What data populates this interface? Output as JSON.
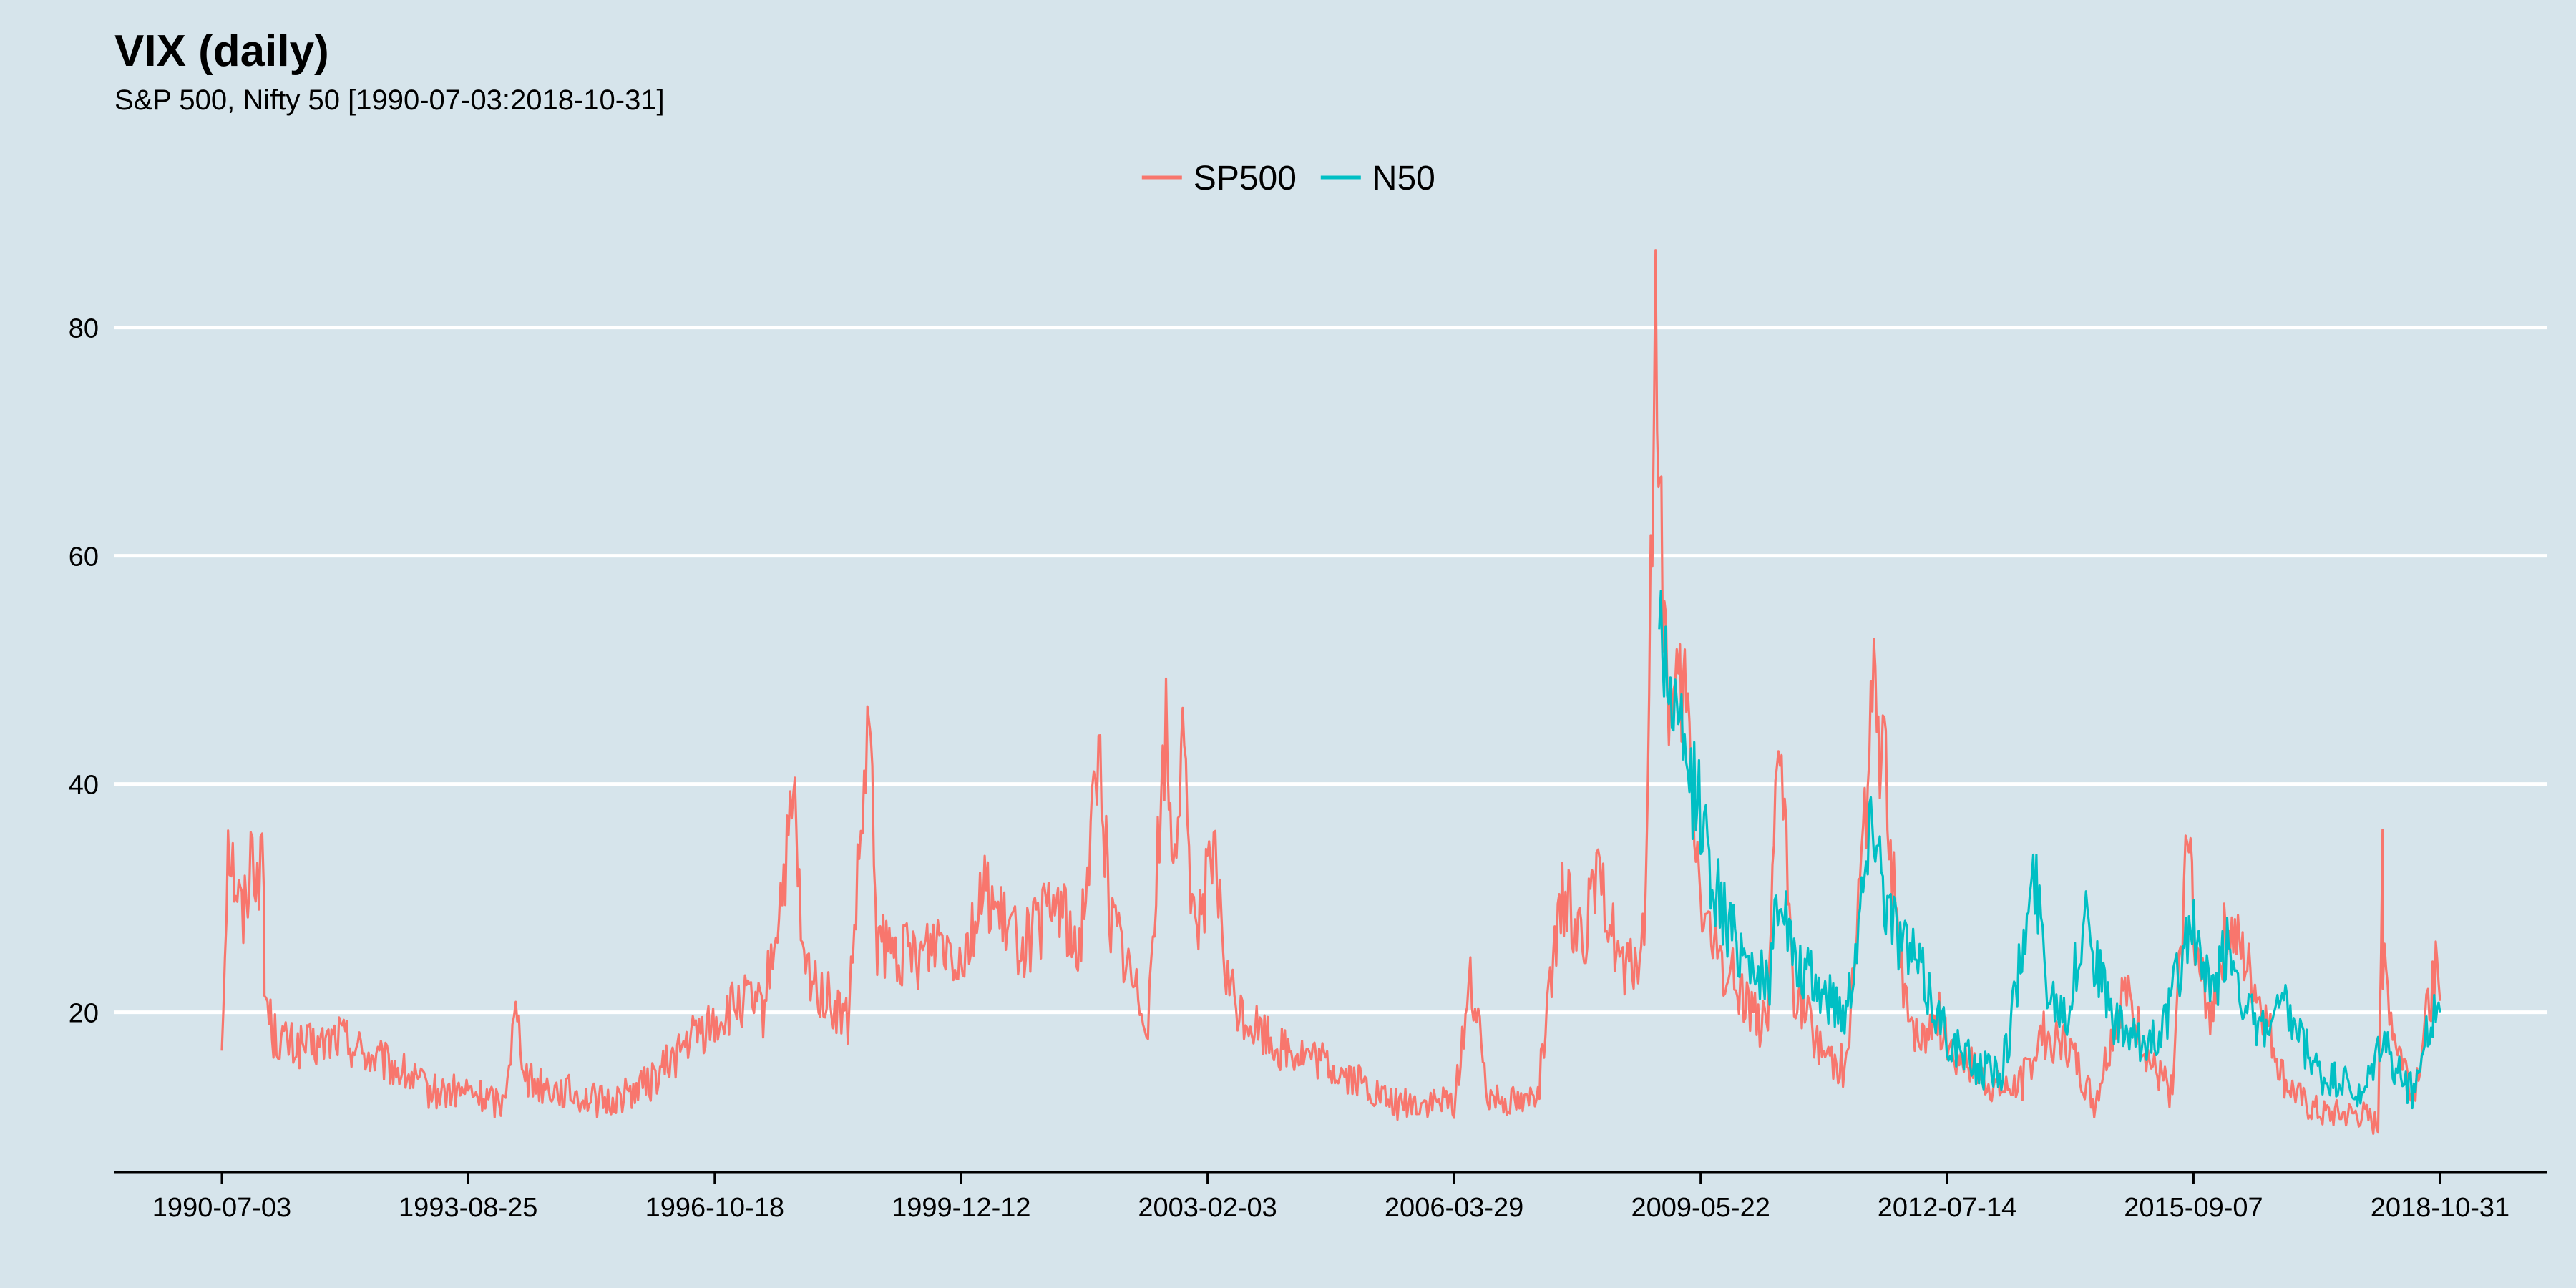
{
  "chart_data": {
    "type": "line",
    "title": "VIX (daily)",
    "subtitle": "S&P 500, Nifty 50 [1990-07-03:2018-10-31]",
    "xlabel": "",
    "ylabel": "",
    "ylim": [
      6,
      88
    ],
    "yticks": [
      20,
      40,
      60,
      80
    ],
    "xticks": [
      "1990-07-03",
      "1993-08-25",
      "1996-10-18",
      "1999-12-12",
      "2003-02-03",
      "2006-03-29",
      "2009-05-22",
      "2012-07-14",
      "2015-09-07",
      "2018-10-31"
    ],
    "grid": "horizontal",
    "legend_position": "top",
    "colors": {
      "SP500": "#f8766d",
      "N50": "#00bfc4",
      "background": "#d6e4eb",
      "grid": "#ffffff"
    },
    "series": [
      {
        "name": "SP500",
        "x": [
          "1990-07-03",
          "1990-08-01",
          "1990-08-23",
          "1990-09-20",
          "1990-10-11",
          "1990-11-15",
          "1991-01-15",
          "1991-01-18",
          "1991-03-01",
          "1991-06-01",
          "1991-10-01",
          "1992-01-01",
          "1992-06-01",
          "1992-10-01",
          "1993-03-01",
          "1993-08-25",
          "1994-02-01",
          "1994-04-04",
          "1994-06-01",
          "1994-12-01",
          "1995-06-01",
          "1996-01-01",
          "1996-07-15",
          "1996-10-18",
          "1997-03-01",
          "1997-06-01",
          "1997-10-27",
          "1997-12-01",
          "1998-04-01",
          "1998-07-01",
          "1998-10-08",
          "1998-11-15",
          "1999-02-01",
          "1999-06-01",
          "1999-09-01",
          "1999-12-12",
          "2000-04-14",
          "2000-06-01",
          "2000-10-01",
          "2001-01-01",
          "2001-03-22",
          "2001-06-01",
          "2001-09-20",
          "2001-11-01",
          "2002-03-01",
          "2002-05-01",
          "2002-07-24",
          "2002-08-20",
          "2002-10-10",
          "2002-12-01",
          "2003-02-03",
          "2003-03-11",
          "2003-05-01",
          "2003-07-01",
          "2004-01-01",
          "2004-06-01",
          "2005-01-01",
          "2005-06-01",
          "2006-01-01",
          "2006-03-29",
          "2006-06-13",
          "2006-09-01",
          "2007-02-27",
          "2007-05-01",
          "2007-08-16",
          "2007-11-26",
          "2008-01-22",
          "2008-03-17",
          "2008-06-01",
          "2008-09-01",
          "2008-10-24",
          "2008-11-20",
          "2009-01-01",
          "2009-03-09",
          "2009-05-22",
          "2009-08-01",
          "2009-12-01",
          "2010-04-01",
          "2010-05-20",
          "2010-08-01",
          "2010-12-01",
          "2011-04-01",
          "2011-08-08",
          "2011-10-03",
          "2011-12-01",
          "2012-03-01",
          "2012-06-01",
          "2012-07-14",
          "2012-10-01",
          "2013-01-01",
          "2013-04-01",
          "2013-07-01",
          "2013-10-01",
          "2014-02-03",
          "2014-06-01",
          "2014-10-15",
          "2014-12-16",
          "2015-03-01",
          "2015-06-01",
          "2015-08-24",
          "2015-09-07",
          "2015-12-01",
          "2016-02-11",
          "2016-06-27",
          "2016-11-04",
          "2017-02-01",
          "2017-05-01",
          "2017-08-11",
          "2017-11-01",
          "2018-01-15",
          "2018-02-05",
          "2018-02-06",
          "2018-04-01",
          "2018-07-01",
          "2018-10-11",
          "2018-10-31"
        ],
        "values": [
          17,
          36,
          33,
          30,
          28,
          34,
          32,
          22,
          18,
          17,
          17,
          18,
          16,
          15,
          13,
          13,
          12,
          20,
          14,
          13,
          12,
          14,
          18,
          19,
          21,
          20,
          38,
          24,
          21,
          19,
          45,
          26,
          25,
          25,
          27,
          25,
          31,
          28,
          26,
          28,
          30,
          24,
          43,
          29,
          22,
          20,
          45,
          34,
          42,
          28,
          31,
          33,
          23,
          20,
          17,
          16,
          14,
          12,
          12,
          12,
          23,
          13,
          12,
          14,
          30,
          27,
          31,
          29,
          23,
          26,
          80,
          60,
          45,
          48,
          30,
          25,
          22,
          18,
          45,
          22,
          17,
          15,
          48,
          40,
          25,
          17,
          20,
          17,
          16,
          14,
          13,
          14,
          18,
          17,
          12,
          22,
          19,
          15,
          13,
          40,
          25,
          20,
          28,
          22,
          14,
          12,
          11,
          11,
          11,
          10,
          37,
          25,
          18,
          13,
          24,
          21
        ]
      },
      {
        "name": "N50",
        "x": [
          "2008-11-10",
          "2009-01-01",
          "2009-03-01",
          "2009-05-22",
          "2009-07-01",
          "2009-10-01",
          "2010-01-01",
          "2010-04-01",
          "2010-05-25",
          "2010-08-01",
          "2010-12-01",
          "2011-04-01",
          "2011-08-08",
          "2011-10-03",
          "2011-12-01",
          "2012-03-01",
          "2012-07-14",
          "2012-10-01",
          "2013-01-01",
          "2013-04-01",
          "2013-08-28",
          "2013-11-01",
          "2014-02-01",
          "2014-05-01",
          "2014-06-01",
          "2014-09-01",
          "2015-01-01",
          "2015-05-01",
          "2015-08-24",
          "2015-12-01",
          "2016-02-11",
          "2016-06-27",
          "2016-11-09",
          "2017-02-01",
          "2017-05-01",
          "2017-08-01",
          "2017-11-01",
          "2018-02-06",
          "2018-04-01",
          "2018-07-01",
          "2018-10-11",
          "2018-10-31"
        ],
        "values": [
          55,
          48,
          42,
          38,
          33,
          27,
          25,
          22,
          32,
          24,
          22,
          20,
          38,
          30,
          27,
          24,
          18,
          16,
          15,
          15,
          32,
          22,
          20,
          30,
          25,
          19,
          17,
          19,
          28,
          21,
          26,
          18,
          20,
          17,
          14,
          14,
          12,
          18,
          15,
          13,
          21,
          20
        ]
      }
    ]
  }
}
